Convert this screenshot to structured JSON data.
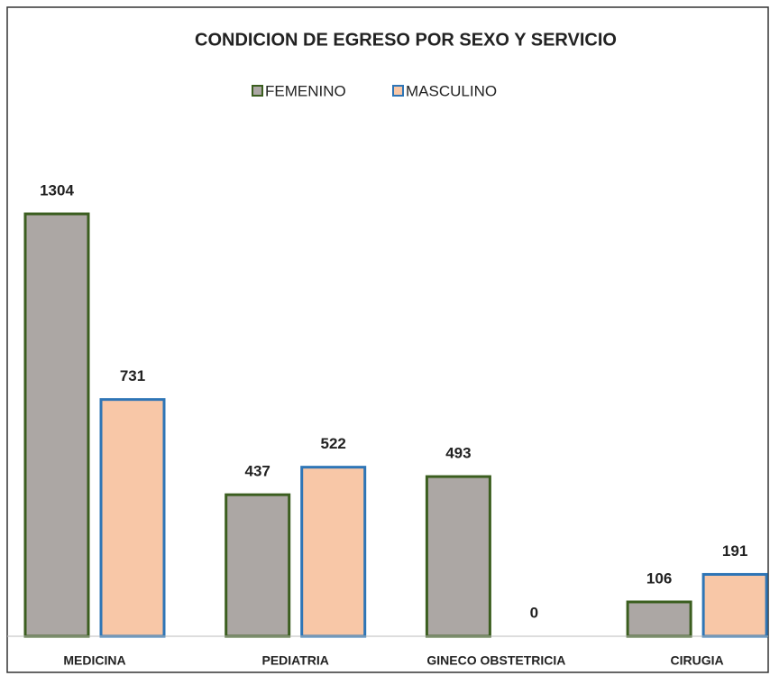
{
  "chart_data": {
    "type": "bar",
    "title": "CONDICION DE EGRESO POR SEXO Y SERVICIO",
    "categories": [
      "MEDICINA",
      "PEDIATRIA",
      "GINECO OBSTETRICIA",
      "CIRUGIA"
    ],
    "series": [
      {
        "name": "FEMENINO",
        "color": "#aca7a4",
        "edgecolor": "#3b5e1f",
        "values": [
          1304,
          437,
          493,
          106
        ]
      },
      {
        "name": "MASCULINO",
        "color": "#f8c7a7",
        "edgecolor": "#2e75b6",
        "values": [
          731,
          522,
          0,
          191
        ]
      }
    ],
    "legend": "top"
  }
}
